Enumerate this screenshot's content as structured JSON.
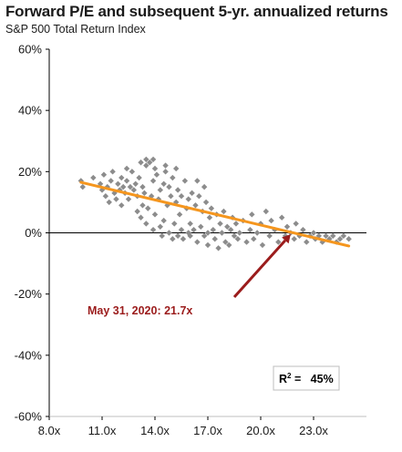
{
  "title": "Forward P/E and subsequent 5-yr. annualized returns",
  "subtitle": "S&P 500 Total Return Index",
  "colors": {
    "points": "#8c8c8c",
    "trendline": "#f5961e",
    "arrow": "#9b1c1c",
    "axis": "#000000"
  },
  "annotation": {
    "label": "May 31, 2020: 21.7x",
    "x": 21.7,
    "y": -0.5,
    "tail_x": 18.5,
    "tail_y": -21
  },
  "r2_box": {
    "label": "R",
    "sup": "2",
    "value": " =   45%"
  },
  "chart_data": {
    "type": "scatter",
    "xlim": [
      8,
      26
    ],
    "ylim": [
      -60,
      60
    ],
    "x_ticks": [
      8,
      11,
      14,
      17,
      20,
      23
    ],
    "x_tick_labels": [
      "8.0x",
      "11.0x",
      "14.0x",
      "17.0x",
      "20.0x",
      "23.0x"
    ],
    "y_ticks": [
      -60,
      -40,
      -20,
      0,
      20,
      40,
      60
    ],
    "y_tick_labels": [
      "-60%",
      "-40%",
      "-20%",
      "0%",
      "20%",
      "40%",
      "60%"
    ],
    "trendline": {
      "x": [
        9.8,
        25.0
      ],
      "y": [
        16.5,
        -4.3
      ]
    },
    "r_squared": 0.45,
    "points": [
      [
        9.8,
        17
      ],
      [
        9.9,
        15
      ],
      [
        10.5,
        18
      ],
      [
        10.9,
        16
      ],
      [
        11,
        14
      ],
      [
        11.1,
        19
      ],
      [
        11.2,
        12
      ],
      [
        11.3,
        15
      ],
      [
        11.4,
        10
      ],
      [
        11.5,
        17
      ],
      [
        11.6,
        20
      ],
      [
        11.7,
        13
      ],
      [
        11.8,
        11
      ],
      [
        11.9,
        16
      ],
      [
        12,
        14
      ],
      [
        12.1,
        18
      ],
      [
        12.1,
        9
      ],
      [
        12.2,
        15
      ],
      [
        12.3,
        13
      ],
      [
        12.4,
        17
      ],
      [
        12.5,
        11
      ],
      [
        12.6,
        15
      ],
      [
        12.7,
        20
      ],
      [
        12.8,
        14
      ],
      [
        12.9,
        16
      ],
      [
        13,
        12
      ],
      [
        13,
        7
      ],
      [
        13.1,
        18
      ],
      [
        13.2,
        5
      ],
      [
        13.3,
        15
      ],
      [
        13.3,
        9
      ],
      [
        13.4,
        13
      ],
      [
        13.5,
        3
      ],
      [
        13.5,
        22
      ],
      [
        13.6,
        8
      ],
      [
        13.7,
        23
      ],
      [
        13.8,
        12
      ],
      [
        13.9,
        1
      ],
      [
        13.9,
        17
      ],
      [
        14,
        21
      ],
      [
        14,
        6
      ],
      [
        14.1,
        19
      ],
      [
        14.2,
        11
      ],
      [
        14.3,
        2
      ],
      [
        14.3,
        14
      ],
      [
        14.4,
        -1
      ],
      [
        14.5,
        16
      ],
      [
        14.5,
        4
      ],
      [
        14.6,
        20
      ],
      [
        14.7,
        9
      ],
      [
        14.8,
        0
      ],
      [
        14.8,
        15
      ],
      [
        14.9,
        12
      ],
      [
        15,
        -2
      ],
      [
        15,
        18
      ],
      [
        15.1,
        3
      ],
      [
        15.2,
        10
      ],
      [
        15.3,
        -1
      ],
      [
        15.3,
        14
      ],
      [
        15.4,
        6
      ],
      [
        15.5,
        1
      ],
      [
        15.5,
        12
      ],
      [
        15.6,
        -2
      ],
      [
        15.7,
        17
      ],
      [
        15.8,
        8
      ],
      [
        15.9,
        0
      ],
      [
        15.9,
        11
      ],
      [
        16,
        3
      ],
      [
        16,
        -1
      ],
      [
        16.1,
        13
      ],
      [
        16.2,
        1
      ],
      [
        16.3,
        9
      ],
      [
        16.4,
        -3
      ],
      [
        16.5,
        12
      ],
      [
        16.6,
        2
      ],
      [
        16.7,
        7
      ],
      [
        16.8,
        -1
      ],
      [
        16.9,
        10
      ],
      [
        17,
        0
      ],
      [
        17,
        -4
      ],
      [
        17.1,
        5
      ],
      [
        17.2,
        8
      ],
      [
        17.3,
        1
      ],
      [
        17.4,
        -2
      ],
      [
        17.5,
        6
      ],
      [
        17.6,
        -5
      ],
      [
        17.7,
        3
      ],
      [
        17.8,
        0
      ],
      [
        17.9,
        7
      ],
      [
        18,
        -3
      ],
      [
        18.1,
        2
      ],
      [
        18.2,
        -4
      ],
      [
        18.3,
        1
      ],
      [
        18.4,
        5
      ],
      [
        18.5,
        -1
      ],
      [
        18.6,
        3
      ],
      [
        18.7,
        -2
      ],
      [
        18.8,
        0
      ],
      [
        19,
        4
      ],
      [
        19.2,
        -3
      ],
      [
        19.4,
        1
      ],
      [
        19.5,
        6
      ],
      [
        19.6,
        -2
      ],
      [
        19.8,
        0
      ],
      [
        20,
        3
      ],
      [
        20.1,
        -4
      ],
      [
        20.3,
        7
      ],
      [
        20.5,
        -1
      ],
      [
        20.6,
        4
      ],
      [
        20.8,
        1
      ],
      [
        21,
        -3
      ],
      [
        21.2,
        5
      ],
      [
        21.4,
        -1
      ],
      [
        21.5,
        2
      ],
      [
        21.7,
        0
      ],
      [
        21.9,
        -2
      ],
      [
        22,
        3
      ],
      [
        22.2,
        -1
      ],
      [
        22.4,
        1
      ],
      [
        22.6,
        -3
      ],
      [
        22.8,
        -1
      ],
      [
        23,
        0
      ],
      [
        23.1,
        -2
      ],
      [
        23.3,
        -1
      ],
      [
        23.5,
        -3
      ],
      [
        23.7,
        -1
      ],
      [
        23.9,
        -2
      ],
      [
        24.1,
        -1
      ],
      [
        24.3,
        -3
      ],
      [
        24.5,
        -2
      ],
      [
        24.7,
        -1
      ],
      [
        25,
        -2
      ],
      [
        13.2,
        23
      ],
      [
        13.5,
        24
      ],
      [
        13.9,
        24
      ],
      [
        12.4,
        21
      ],
      [
        14.6,
        22
      ],
      [
        15.2,
        21
      ],
      [
        16.4,
        17
      ],
      [
        16.8,
        15
      ]
    ]
  }
}
